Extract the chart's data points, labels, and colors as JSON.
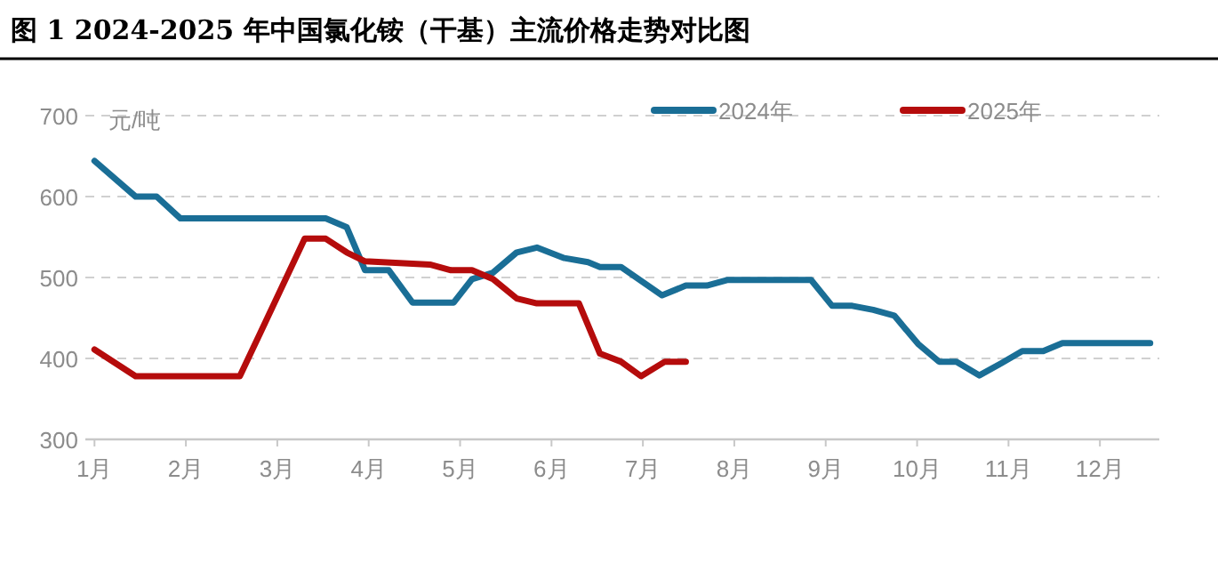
{
  "chart_data": {
    "type": "line",
    "title": "图 1 2024-2025 年中国氯化铵（干基）主流价格走势对比图",
    "ylabel": "元/吨",
    "xlim": [
      0.9,
      12.65
    ],
    "xticks": [
      {
        "value": 1,
        "label": "1月"
      },
      {
        "value": 2,
        "label": "2月"
      },
      {
        "value": 3,
        "label": "3月"
      },
      {
        "value": 4,
        "label": "4月"
      },
      {
        "value": 5,
        "label": "5月"
      },
      {
        "value": 6,
        "label": "6月"
      },
      {
        "value": 7,
        "label": "7月"
      },
      {
        "value": 8,
        "label": "8月"
      },
      {
        "value": 9,
        "label": "9月"
      },
      {
        "value": 10,
        "label": "10月"
      },
      {
        "value": 11,
        "label": "11月"
      },
      {
        "value": 12,
        "label": "12月"
      }
    ],
    "ylim": [
      300,
      700
    ],
    "yticks": [
      300,
      400,
      500,
      600,
      700
    ],
    "grid": "y",
    "legend": "top",
    "marker": "none",
    "line_style": "solid",
    "series": [
      {
        "name": "2024年",
        "color": "#1a6e96",
        "x": [
          1.0,
          1.45,
          1.68,
          1.94,
          3.53,
          3.76,
          3.96,
          4.22,
          4.48,
          4.93,
          5.13,
          5.36,
          5.62,
          5.84,
          6.14,
          6.4,
          6.53,
          6.76,
          7.21,
          7.47,
          7.7,
          7.93,
          8.84,
          9.07,
          9.29,
          9.52,
          9.75,
          10.01,
          10.24,
          10.43,
          10.68,
          10.92,
          11.15,
          11.38,
          11.59,
          12.55
        ],
        "values": [
          644,
          600,
          600,
          573,
          573,
          562,
          509,
          509,
          469,
          469,
          498,
          506,
          531,
          537,
          524,
          519,
          513,
          513,
          478,
          490,
          490,
          497,
          497,
          465,
          465,
          460,
          453,
          418,
          396,
          396,
          379,
          394,
          409,
          409,
          419,
          419
        ]
      },
      {
        "name": "2025年",
        "color": "#b50c0c",
        "x": [
          1.0,
          1.45,
          2.59,
          2.82,
          3.3,
          3.53,
          3.76,
          3.96,
          4.67,
          4.9,
          5.13,
          5.36,
          5.62,
          5.84,
          6.3,
          6.53,
          6.76,
          6.98,
          7.24,
          7.47
        ],
        "values": [
          411,
          378,
          378,
          433,
          548,
          548,
          531,
          520,
          516,
          509,
          509,
          498,
          474,
          468,
          468,
          406,
          396,
          378,
          396,
          396
        ]
      }
    ]
  }
}
